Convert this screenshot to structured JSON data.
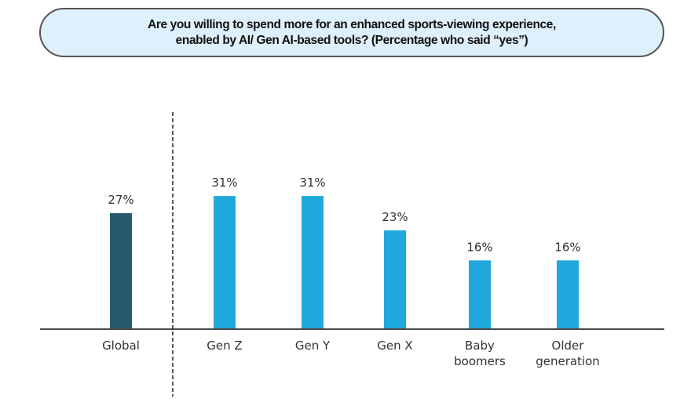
{
  "chart_data": {
    "type": "bar",
    "title_lines": [
      "Are you willing to spend more for an enhanced sports-viewing experience,",
      "enabled by AI/ Gen AI-based tools? (Percentage who said “yes”)"
    ],
    "categories": [
      [
        "Global"
      ],
      [
        "Gen Z"
      ],
      [
        "Gen Y"
      ],
      [
        "Gen X"
      ],
      [
        "Baby",
        "boomers"
      ],
      [
        "Older",
        "generation"
      ]
    ],
    "values": [
      27,
      31,
      31,
      23,
      16,
      16
    ],
    "value_labels": [
      "27%",
      "31%",
      "31%",
      "23%",
      "16%",
      "16%"
    ],
    "bar_colors": [
      "#245a6c",
      "#1fa8dc",
      "#1fa8dc",
      "#1fa8dc",
      "#1fa8dc",
      "#1fa8dc"
    ],
    "xlabel": "",
    "ylabel": "",
    "ylim": [
      0,
      35
    ],
    "grid": false,
    "legend": "none",
    "separator_after_category": "Global"
  },
  "colors": {
    "title_box_fill": "#ddf0fb",
    "title_box_border": "#5a5050",
    "axis": "#4a4a4a",
    "label_text": "#333333"
  }
}
